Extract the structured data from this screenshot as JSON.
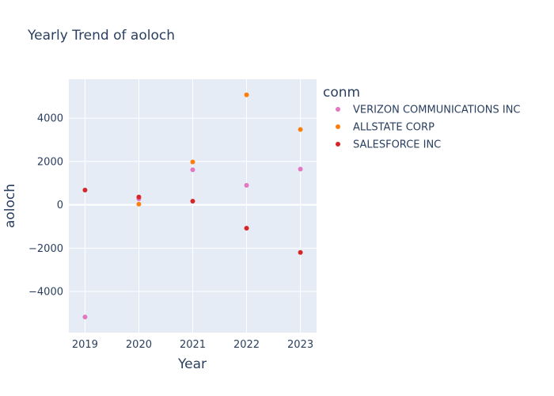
{
  "chart_data": {
    "type": "scatter",
    "title": "Yearly Trend of aoloch",
    "xlabel": "Year",
    "ylabel": "aoloch",
    "xlim": [
      2018.7,
      2023.3
    ],
    "ylim": [
      -5900,
      5800
    ],
    "x_ticks": [
      2019,
      2020,
      2021,
      2022,
      2023
    ],
    "x_tick_labels": [
      "2019",
      "2020",
      "2021",
      "2022",
      "2023"
    ],
    "y_ticks": [
      -4000,
      -2000,
      0,
      2000,
      4000
    ],
    "y_tick_labels": [
      "−4000",
      "−2000",
      "0",
      "2000",
      "4000"
    ],
    "grid": true,
    "legend": {
      "title": "conm",
      "placement": "right"
    },
    "series": [
      {
        "name": "VERIZON COMMUNICATIONS INC",
        "color": "#e377c2",
        "x": [
          2019,
          2020,
          2021,
          2022,
          2023
        ],
        "y": [
          -5180,
          280,
          1620,
          900,
          1650
        ]
      },
      {
        "name": "ALLSTATE CORP",
        "color": "#ff7f0e",
        "x": [
          2020,
          2021,
          2022,
          2023
        ],
        "y": [
          30,
          1980,
          5080,
          3480
        ]
      },
      {
        "name": "SALESFORCE INC",
        "color": "#d62728",
        "x": [
          2019,
          2020,
          2021,
          2022,
          2023
        ],
        "y": [
          680,
          360,
          170,
          -1080,
          -2200
        ]
      }
    ]
  }
}
